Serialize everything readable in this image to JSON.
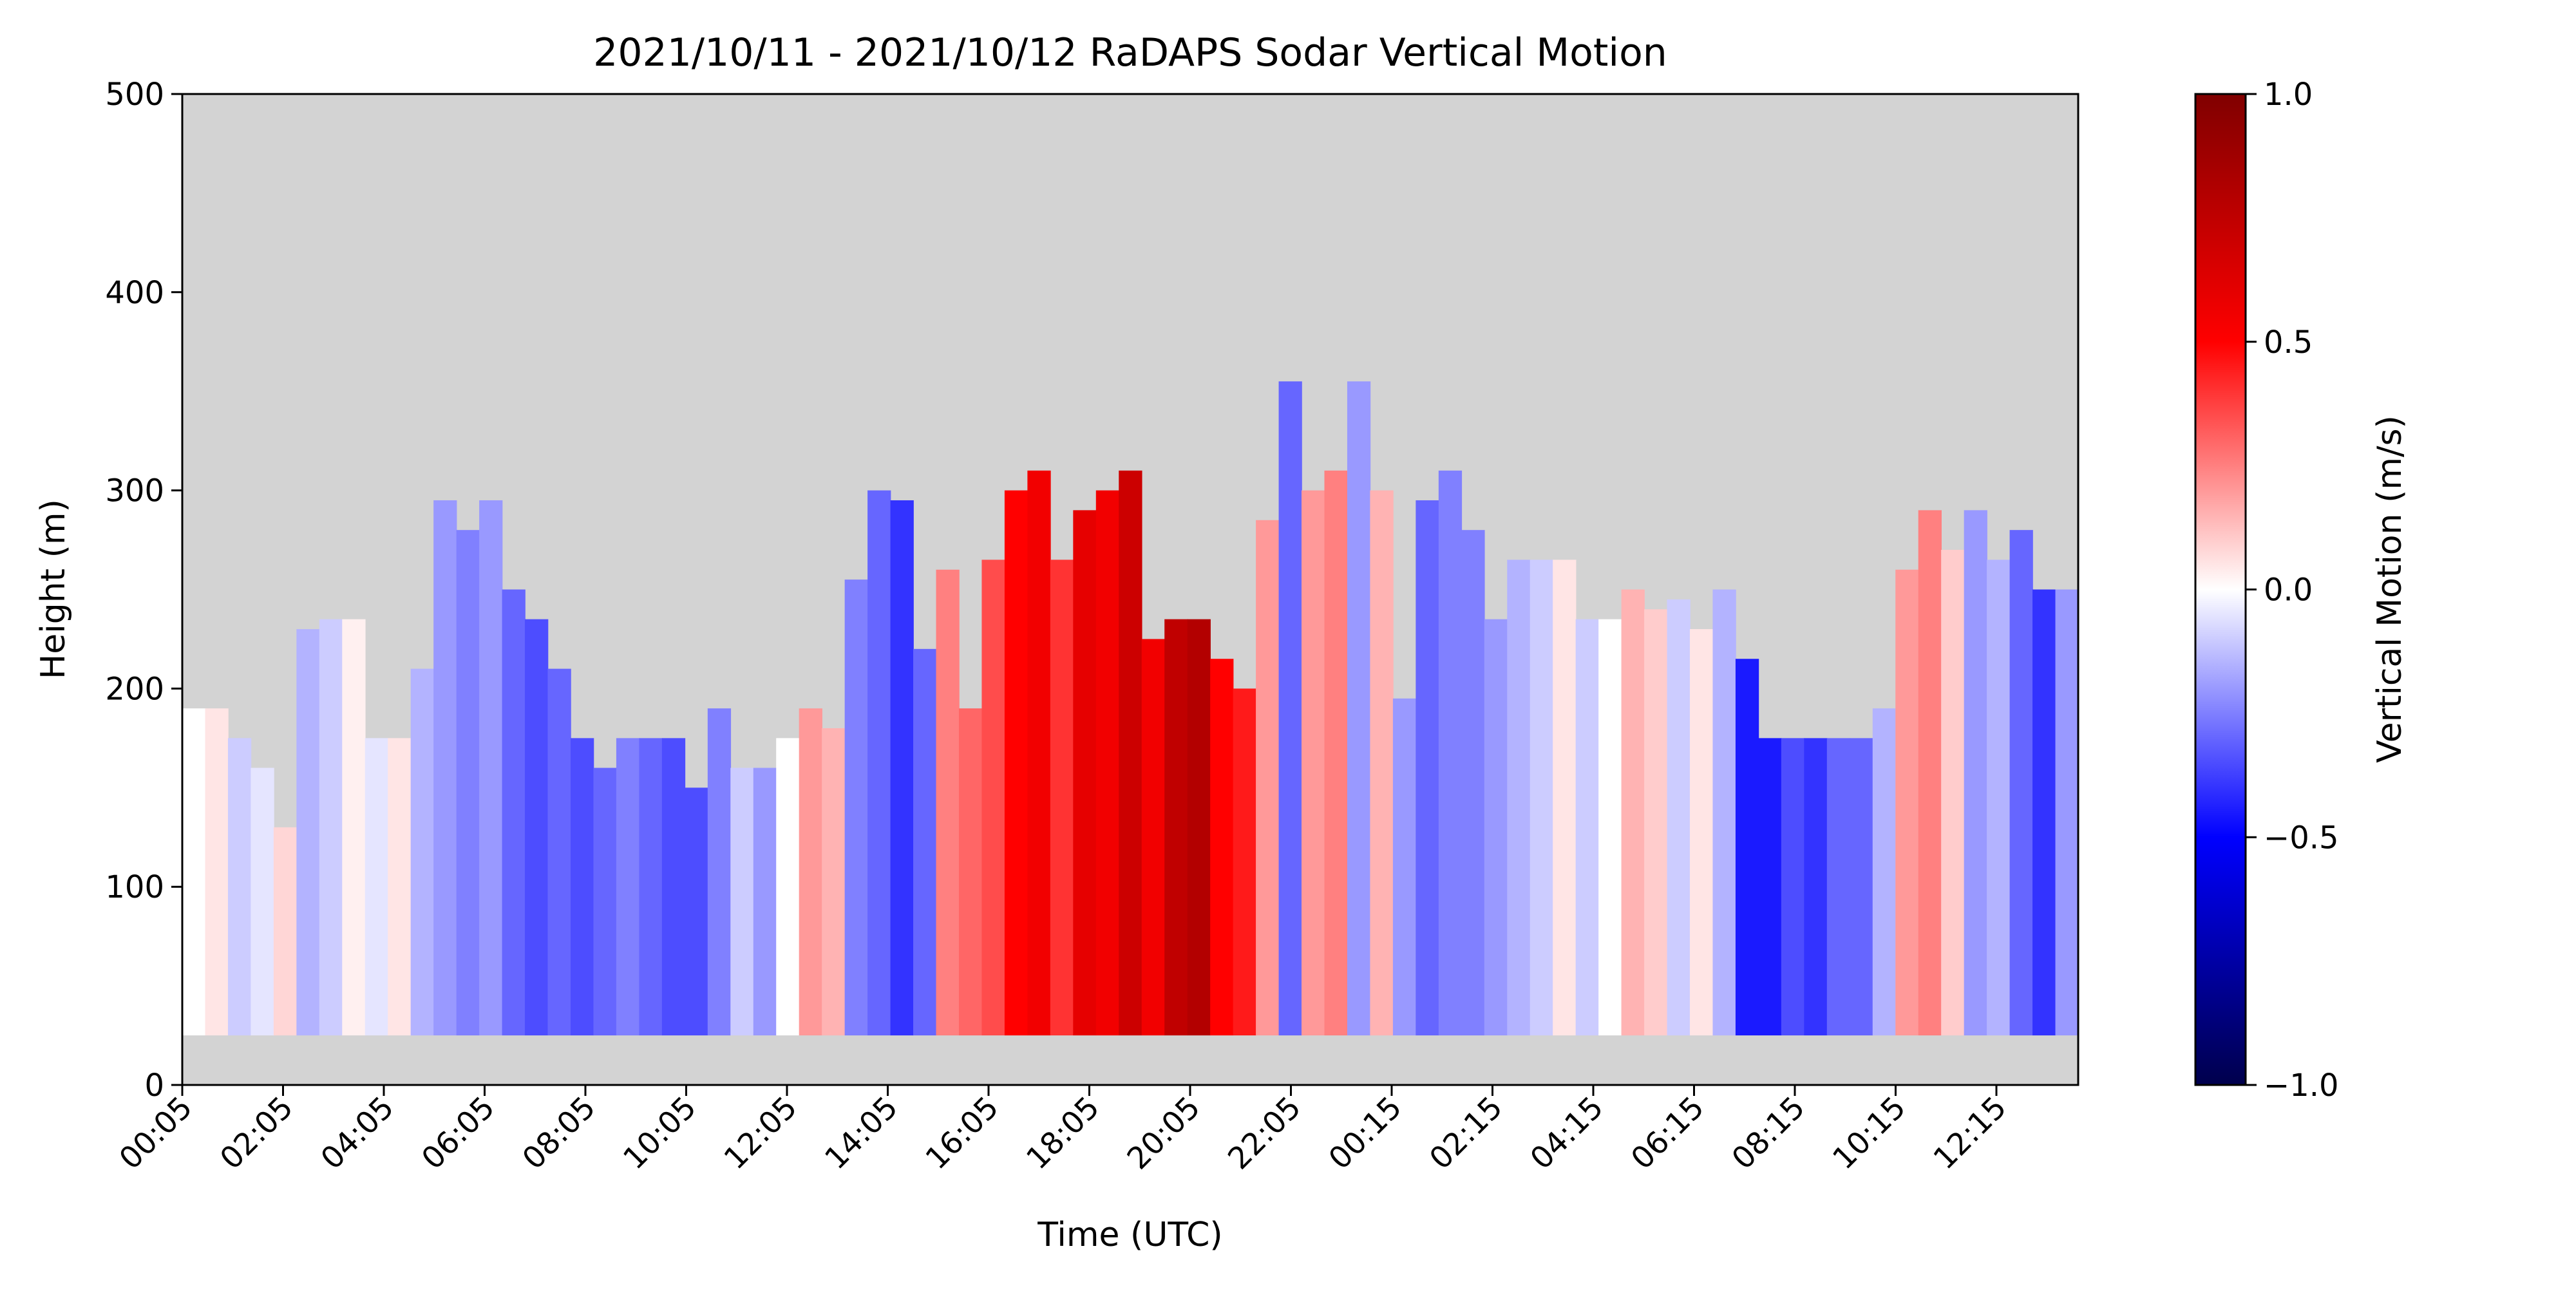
{
  "chart_data": {
    "type": "heatmap",
    "title": "2021/10/11 - 2021/10/12 RaDAPS Sodar Vertical Motion",
    "xlabel": "Time (UTC)",
    "ylabel": "Height (m)",
    "colorbar_label": "Vertical Motion (m/s)",
    "x_ticks": [
      "00:05",
      "02:05",
      "04:05",
      "06:05",
      "08:05",
      "10:05",
      "12:05",
      "14:05",
      "16:05",
      "18:05",
      "20:05",
      "22:05",
      "00:15",
      "02:15",
      "04:15",
      "06:15",
      "08:15",
      "10:15",
      "12:15"
    ],
    "y_ticks": [
      "0",
      "100",
      "200",
      "300",
      "400",
      "500"
    ],
    "ylim": [
      0,
      500
    ],
    "colorbar_ticks": [
      "−1.0",
      "−0.5",
      "0.0",
      "0.5",
      "1.0"
    ],
    "clim": [
      -1.0,
      1.0
    ],
    "colormap": "seismic",
    "colormap_stops": [
      "#00004c",
      "#0000ff",
      "#ffffff",
      "#ff0000",
      "#800000"
    ],
    "missing_color": "#d3d3d3",
    "lowest_valid_height_m": 25,
    "grid": false,
    "top_height_by_time_m": [
      190,
      190,
      175,
      160,
      130,
      230,
      235,
      235,
      175,
      175,
      210,
      295,
      280,
      295,
      250,
      235,
      210,
      175,
      160,
      175,
      175,
      175,
      150,
      190,
      160,
      160,
      175,
      190,
      180,
      255,
      300,
      295,
      220,
      260,
      190,
      265,
      300,
      310,
      265,
      290,
      300,
      310,
      225,
      235,
      235,
      215,
      200,
      285,
      355,
      300,
      310,
      355,
      300,
      195,
      295,
      310,
      280,
      235,
      265,
      265,
      265,
      235,
      235,
      250,
      240,
      245,
      230,
      250,
      215,
      175,
      175,
      175,
      175,
      175,
      190,
      260,
      290,
      270,
      290,
      265,
      280,
      250,
      250
    ],
    "vertical_motion_by_time": [
      0.0,
      0.05,
      -0.1,
      -0.05,
      0.08,
      -0.15,
      -0.1,
      0.03,
      -0.05,
      0.05,
      -0.15,
      -0.2,
      -0.25,
      -0.2,
      -0.3,
      -0.35,
      -0.3,
      -0.35,
      -0.3,
      -0.25,
      -0.3,
      -0.35,
      -0.35,
      -0.25,
      -0.1,
      -0.2,
      0.0,
      0.2,
      0.15,
      -0.25,
      -0.3,
      -0.4,
      -0.3,
      0.25,
      0.3,
      0.35,
      0.5,
      0.55,
      0.4,
      0.6,
      0.55,
      0.7,
      0.55,
      0.75,
      0.8,
      0.5,
      0.45,
      0.2,
      -0.3,
      0.2,
      0.25,
      -0.2,
      0.15,
      -0.2,
      -0.3,
      -0.25,
      -0.25,
      -0.2,
      -0.15,
      -0.1,
      0.05,
      -0.1,
      0.0,
      0.15,
      0.1,
      -0.1,
      0.05,
      -0.15,
      -0.45,
      -0.45,
      -0.35,
      -0.4,
      -0.3,
      -0.3,
      -0.15,
      0.2,
      0.25,
      0.1,
      -0.2,
      -0.15,
      -0.3,
      -0.4,
      -0.2
    ]
  }
}
